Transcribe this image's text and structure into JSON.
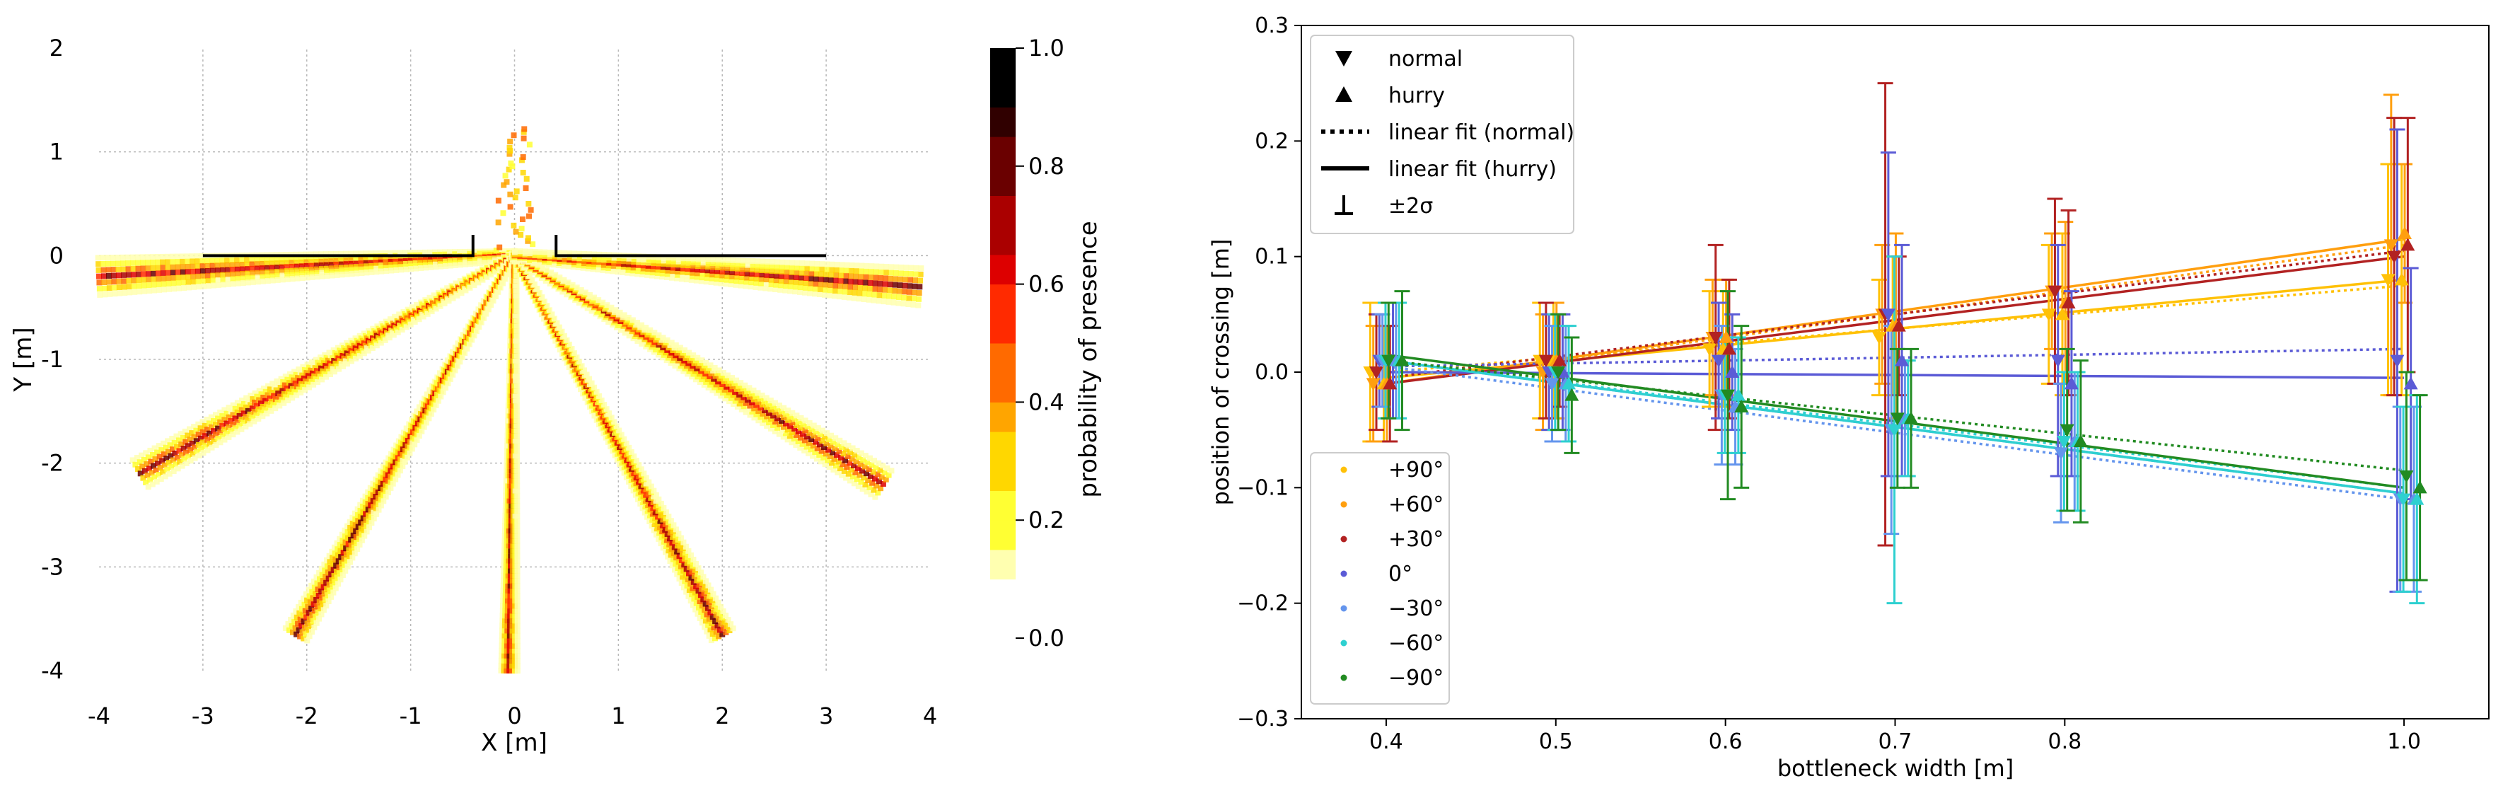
{
  "chart_data": [
    {
      "type": "heatmap",
      "xlabel": "X [m]",
      "ylabel": "Y [m]",
      "xlim": [
        -4,
        4
      ],
      "ylim": [
        -4,
        2
      ],
      "xticks": [
        -4,
        -3,
        -2,
        -1,
        0,
        1,
        2,
        3,
        4
      ],
      "xtick_labels": [
        "-4",
        "-3",
        "-2",
        "-1",
        "0",
        "1",
        "2",
        "3",
        "4"
      ],
      "yticks": [
        -4,
        -3,
        -2,
        -1,
        0,
        1,
        2
      ],
      "ytick_labels": [
        "-4",
        "-3",
        "-2",
        "-1",
        "0",
        "1",
        "2"
      ],
      "grid": true,
      "walls": [
        {
          "x": [
            -3,
            -0.4,
            -0.4
          ],
          "y": [
            0,
            0,
            0.2
          ]
        },
        {
          "x": [
            0.4,
            0.4,
            3
          ],
          "y": [
            0.2,
            0,
            0
          ]
        }
      ],
      "trajectories": [
        {
          "start": [
            -4.0,
            -0.2
          ],
          "end": [
            0,
            0
          ],
          "spread": 0.18
        },
        {
          "start": [
            -3.6,
            -2.1
          ],
          "end": [
            0,
            0
          ],
          "spread": 0.15
        },
        {
          "start": [
            -2.1,
            -3.65
          ],
          "end": [
            0,
            0
          ],
          "spread": 0.12
        },
        {
          "start": [
            -0.05,
            -4.0
          ],
          "end": [
            0,
            0
          ],
          "spread": 0.08
        },
        {
          "start": [
            2.0,
            -3.65
          ],
          "end": [
            0,
            0
          ],
          "spread": 0.12
        },
        {
          "start": [
            3.55,
            -2.2
          ],
          "end": [
            0,
            0
          ],
          "spread": 0.15
        },
        {
          "start": [
            3.9,
            -0.3
          ],
          "end": [
            0,
            0
          ],
          "spread": 0.18
        }
      ],
      "colorbar": {
        "label": "probability of presence",
        "range": [
          0,
          1
        ],
        "ticks": [
          0.0,
          0.2,
          0.4,
          0.6,
          0.8,
          1.0
        ],
        "tick_labels": [
          "0.0",
          "0.2",
          "0.4",
          "0.6",
          "0.8",
          "1.0"
        ],
        "colormap": [
          "#ffffff",
          "#ffffb0",
          "#ffff33",
          "#ffd700",
          "#ffa500",
          "#ff6a00",
          "#ff2a00",
          "#dd0000",
          "#aa0000",
          "#6a0000",
          "#300000",
          "#000000"
        ]
      }
    },
    {
      "type": "scatter",
      "xlabel": "bottleneck width [m]",
      "ylabel": "position of crossing [m]",
      "xlim": [
        0.35,
        1.05
      ],
      "ylim": [
        -0.3,
        0.3
      ],
      "xticks": [
        0.4,
        0.5,
        0.6,
        0.7,
        0.8,
        1.0
      ],
      "xtick_labels": [
        "0.4",
        "0.5",
        "0.6",
        "0.7",
        "0.8",
        "1.0"
      ],
      "yticks": [
        -0.3,
        -0.2,
        -0.1,
        0.0,
        0.1,
        0.2,
        0.3
      ],
      "ytick_labels": [
        "−0.3",
        "−0.2",
        "−0.1",
        "0.0",
        "0.1",
        "0.2",
        "0.3"
      ],
      "grid": false,
      "marker_legend": {
        "placement": "top-left",
        "entries": [
          {
            "symbol": "triangle-down",
            "label": "normal"
          },
          {
            "symbol": "triangle-up",
            "label": "hurry"
          },
          {
            "symbol": "dotted-line",
            "label": "linear fit (normal)"
          },
          {
            "symbol": "solid-line",
            "label": "linear fit (hurry)"
          },
          {
            "symbol": "errorbar",
            "label": "±2σ"
          }
        ]
      },
      "color_legend_placement": "bottom-left",
      "series": [
        {
          "name": "+90°",
          "color": "#ffc107",
          "normal": [
            0.0,
            0.01,
            0.02,
            0.03,
            0.05,
            0.08
          ],
          "normal_err": [
            0.06,
            0.05,
            0.05,
            0.05,
            0.06,
            0.1
          ],
          "hurry": [
            -0.01,
            0.01,
            0.02,
            0.04,
            0.05,
            0.08
          ],
          "hurry_err": [
            0.05,
            0.05,
            0.05,
            0.06,
            0.07,
            0.1
          ],
          "fit_normal": [
            0.0,
            0.075
          ],
          "fit_hurry": [
            -0.005,
            0.08
          ]
        },
        {
          "name": "+60°",
          "color": "#ff9f0f",
          "normal": [
            -0.01,
            0.0,
            0.03,
            0.05,
            0.07,
            0.11
          ],
          "normal_err": [
            0.05,
            0.05,
            0.05,
            0.06,
            0.05,
            0.13
          ],
          "hurry": [
            -0.01,
            0.01,
            0.03,
            0.04,
            0.06,
            0.12
          ],
          "hurry_err": [
            0.05,
            0.05,
            0.05,
            0.08,
            0.07,
            0.06
          ],
          "fit_normal": [
            -0.01,
            0.11
          ],
          "fit_hurry": [
            -0.01,
            0.115
          ]
        },
        {
          "name": "+30°",
          "color": "#b22222",
          "normal": [
            0.0,
            0.01,
            0.03,
            0.05,
            0.07,
            0.1
          ],
          "normal_err": [
            0.05,
            0.05,
            0.08,
            0.2,
            0.08,
            0.12
          ],
          "hurry": [
            -0.01,
            0.01,
            0.02,
            0.04,
            0.06,
            0.11
          ],
          "hurry_err": [
            0.05,
            0.04,
            0.06,
            0.06,
            0.08,
            0.11
          ],
          "fit_normal": [
            -0.005,
            0.105
          ],
          "fit_hurry": [
            -0.01,
            0.1
          ]
        },
        {
          "name": "0°",
          "color": "#5b5bd6",
          "normal": [
            0.01,
            0.0,
            0.01,
            0.05,
            0.01,
            0.01
          ],
          "normal_err": [
            0.04,
            0.05,
            0.05,
            0.14,
            0.1,
            0.2
          ],
          "hurry": [
            0.01,
            0.0,
            0.0,
            0.01,
            -0.01,
            -0.01
          ],
          "hurry_err": [
            0.05,
            0.05,
            0.05,
            0.1,
            0.08,
            0.1
          ],
          "fit_normal": [
            0.005,
            0.02
          ],
          "fit_hurry": [
            0.0,
            -0.005
          ]
        },
        {
          "name": "−30°",
          "color": "#6495ed",
          "normal": [
            0.01,
            -0.01,
            -0.02,
            -0.05,
            -0.07,
            -0.11
          ],
          "normal_err": [
            0.04,
            0.05,
            0.06,
            0.09,
            0.06,
            0.08
          ],
          "hurry": [
            0.01,
            -0.01,
            -0.03,
            -0.04,
            -0.06,
            -0.11
          ],
          "hurry_err": [
            0.05,
            0.05,
            0.05,
            0.05,
            0.06,
            0.08
          ],
          "fit_normal": [
            0.005,
            -0.11
          ],
          "fit_hurry": [
            0.01,
            -0.105
          ]
        },
        {
          "name": "−60°",
          "color": "#2ed0d0",
          "normal": [
            0.01,
            0.0,
            -0.02,
            -0.05,
            -0.06,
            -0.11
          ],
          "normal_err": [
            0.05,
            0.05,
            0.05,
            0.15,
            0.06,
            0.08
          ],
          "hurry": [
            0.01,
            -0.01,
            -0.02,
            -0.04,
            -0.06,
            -0.11
          ],
          "hurry_err": [
            0.05,
            0.05,
            0.05,
            0.05,
            0.06,
            0.09
          ],
          "fit_normal": [
            0.01,
            -0.1
          ],
          "fit_hurry": [
            0.01,
            -0.105
          ]
        },
        {
          "name": "−90°",
          "color": "#228b22",
          "normal": [
            0.01,
            0.0,
            -0.02,
            -0.04,
            -0.05,
            -0.09
          ],
          "normal_err": [
            0.05,
            0.05,
            0.09,
            0.06,
            0.07,
            0.09
          ],
          "hurry": [
            0.01,
            -0.02,
            -0.03,
            -0.04,
            -0.06,
            -0.1
          ],
          "hurry_err": [
            0.06,
            0.05,
            0.07,
            0.06,
            0.07,
            0.08
          ],
          "fit_normal": [
            0.01,
            -0.085
          ],
          "fit_hurry": [
            0.015,
            -0.1
          ]
        }
      ]
    }
  ]
}
